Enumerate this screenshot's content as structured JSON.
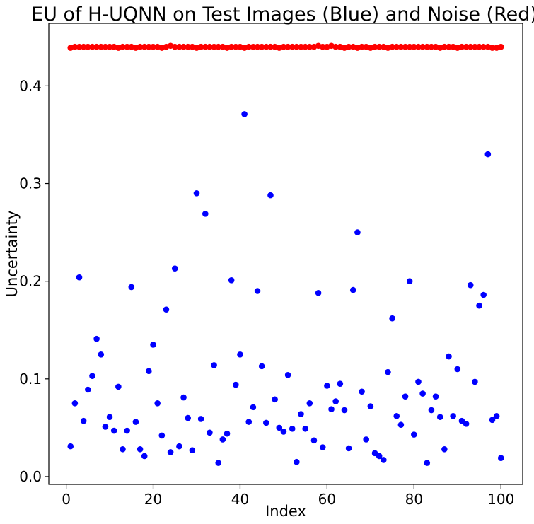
{
  "chart_data": {
    "type": "scatter",
    "title": "EU of H-UQNN on Test Images (Blue) and Noise (Red)",
    "xlabel": "Index",
    "ylabel": "Uncertainty",
    "xlim": [
      -4,
      105
    ],
    "ylim": [
      -0.008,
      0.464
    ],
    "xticks": [
      0,
      20,
      40,
      60,
      80,
      100
    ],
    "yticks": [
      0.0,
      0.1,
      0.2,
      0.3,
      0.4
    ],
    "xtick_labels": [
      "0",
      "20",
      "40",
      "60",
      "80",
      "100"
    ],
    "ytick_labels": [
      "0.0",
      "0.1",
      "0.2",
      "0.3",
      "0.4"
    ],
    "grid": false,
    "legend": "none",
    "series": [
      {
        "color": "#0000ff",
        "x": [
          1,
          2,
          3,
          4,
          5,
          6,
          7,
          8,
          9,
          10,
          11,
          12,
          13,
          14,
          15,
          16,
          17,
          18,
          19,
          20,
          21,
          22,
          23,
          24,
          25,
          26,
          27,
          28,
          29,
          30,
          31,
          32,
          33,
          34,
          35,
          36,
          37,
          38,
          39,
          40,
          41,
          42,
          43,
          44,
          45,
          46,
          47,
          48,
          49,
          50,
          51,
          52,
          53,
          54,
          55,
          56,
          57,
          58,
          59,
          60,
          61,
          62,
          63,
          64,
          65,
          66,
          67,
          68,
          69,
          70,
          71,
          72,
          73,
          74,
          75,
          76,
          77,
          78,
          79,
          80,
          81,
          82,
          83,
          84,
          85,
          86,
          87,
          88,
          89,
          90,
          91,
          92,
          93,
          94,
          95,
          96,
          97,
          98,
          99,
          100
        ],
        "y": [
          0.031,
          0.075,
          0.204,
          0.057,
          0.089,
          0.103,
          0.141,
          0.125,
          0.051,
          0.061,
          0.047,
          0.092,
          0.028,
          0.047,
          0.194,
          0.056,
          0.028,
          0.021,
          0.108,
          0.135,
          0.075,
          0.042,
          0.171,
          0.025,
          0.213,
          0.031,
          0.081,
          0.06,
          0.027,
          0.29,
          0.059,
          0.269,
          0.045,
          0.114,
          0.014,
          0.038,
          0.044,
          0.201,
          0.094,
          0.125,
          0.371,
          0.056,
          0.071,
          0.19,
          0.113,
          0.055,
          0.288,
          0.079,
          0.05,
          0.046,
          0.104,
          0.049,
          0.015,
          0.064,
          0.049,
          0.075,
          0.037,
          0.188,
          0.03,
          0.093,
          0.069,
          0.077,
          0.095,
          0.068,
          0.029,
          0.191,
          0.25,
          0.087,
          0.038,
          0.072,
          0.024,
          0.021,
          0.017,
          0.107,
          0.162,
          0.062,
          0.053,
          0.082,
          0.2,
          0.043,
          0.097,
          0.085,
          0.014,
          0.068,
          0.082,
          0.061,
          0.028,
          0.123,
          0.062,
          0.11,
          0.057,
          0.054,
          0.196,
          0.097,
          0.175,
          0.186,
          0.33,
          0.058,
          0.062,
          0.019
        ]
      },
      {
        "color": "#ff0000",
        "x": [
          1,
          2,
          3,
          4,
          5,
          6,
          7,
          8,
          9,
          10,
          11,
          12,
          13,
          14,
          15,
          16,
          17,
          18,
          19,
          20,
          21,
          22,
          23,
          24,
          25,
          26,
          27,
          28,
          29,
          30,
          31,
          32,
          33,
          34,
          35,
          36,
          37,
          38,
          39,
          40,
          41,
          42,
          43,
          44,
          45,
          46,
          47,
          48,
          49,
          50,
          51,
          52,
          53,
          54,
          55,
          56,
          57,
          58,
          59,
          60,
          61,
          62,
          63,
          64,
          65,
          66,
          67,
          68,
          69,
          70,
          71,
          72,
          73,
          74,
          75,
          76,
          77,
          78,
          79,
          80,
          81,
          82,
          83,
          84,
          85,
          86,
          87,
          88,
          89,
          90,
          91,
          92,
          93,
          94,
          95,
          96,
          97,
          98,
          99,
          100
        ],
        "y": [
          0.439,
          0.44,
          0.44,
          0.44,
          0.44,
          0.44,
          0.44,
          0.44,
          0.44,
          0.44,
          0.44,
          0.439,
          0.44,
          0.44,
          0.44,
          0.439,
          0.44,
          0.44,
          0.44,
          0.44,
          0.44,
          0.439,
          0.44,
          0.441,
          0.44,
          0.44,
          0.44,
          0.44,
          0.44,
          0.439,
          0.44,
          0.44,
          0.44,
          0.44,
          0.44,
          0.44,
          0.439,
          0.44,
          0.44,
          0.44,
          0.439,
          0.44,
          0.44,
          0.44,
          0.44,
          0.44,
          0.44,
          0.44,
          0.439,
          0.44,
          0.44,
          0.44,
          0.44,
          0.44,
          0.44,
          0.44,
          0.44,
          0.441,
          0.44,
          0.44,
          0.441,
          0.44,
          0.44,
          0.439,
          0.44,
          0.44,
          0.439,
          0.44,
          0.44,
          0.439,
          0.44,
          0.44,
          0.44,
          0.439,
          0.44,
          0.44,
          0.44,
          0.44,
          0.44,
          0.44,
          0.44,
          0.44,
          0.44,
          0.44,
          0.44,
          0.439,
          0.44,
          0.44,
          0.44,
          0.439,
          0.44,
          0.44,
          0.44,
          0.44,
          0.44,
          0.44,
          0.44,
          0.439,
          0.439,
          0.44
        ]
      }
    ]
  }
}
